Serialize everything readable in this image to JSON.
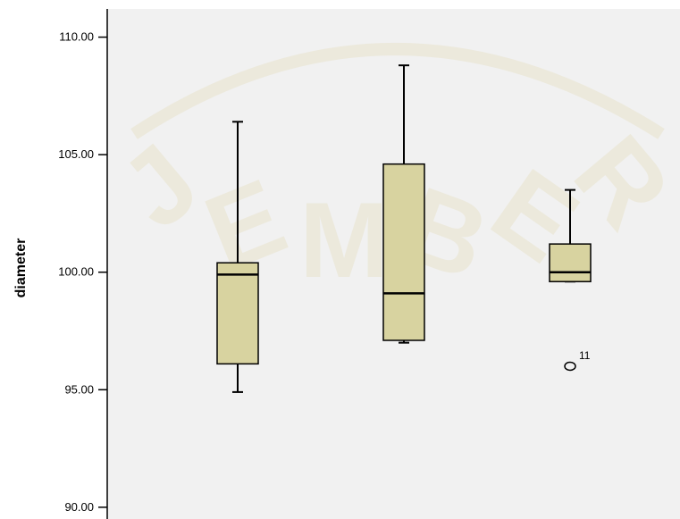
{
  "chart_data": {
    "type": "boxplot",
    "ylabel": "diameter",
    "ylim": [
      89.5,
      111.2
    ],
    "yticks": [
      90.0,
      95.0,
      100.0,
      105.0,
      110.0
    ],
    "ytick_labels": [
      "90.00",
      "95.00",
      "100.00",
      "105.00",
      "110.00"
    ],
    "box_color": "#d8d3a0",
    "plot_background": "#f1f1f1",
    "watermark": "JEMBER",
    "groups": [
      {
        "min": 94.9,
        "q1": 96.1,
        "median": 99.9,
        "q3": 100.4,
        "max": 106.4,
        "outliers": []
      },
      {
        "min": 97.0,
        "q1": 97.1,
        "median": 99.1,
        "q3": 104.6,
        "max": 108.8,
        "outliers": []
      },
      {
        "min": 99.6,
        "q1": 99.6,
        "median": 100.0,
        "q3": 101.2,
        "max": 103.5,
        "outliers": [
          {
            "value": 96.0,
            "label": "11"
          }
        ]
      }
    ]
  }
}
